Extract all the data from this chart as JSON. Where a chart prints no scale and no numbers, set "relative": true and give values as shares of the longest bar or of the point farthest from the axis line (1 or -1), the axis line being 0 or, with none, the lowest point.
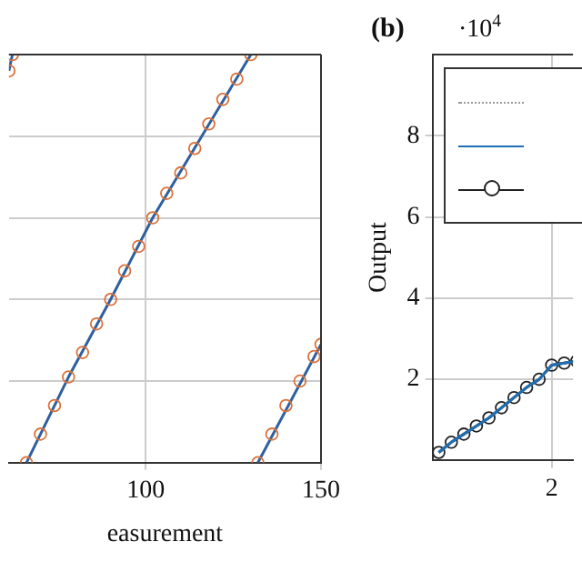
{
  "chart_data": [
    {
      "type": "scatter",
      "xlabel": "easurement",
      "relative": true,
      "xlim": [
        61,
        150
      ],
      "xticks": [
        100,
        150
      ],
      "tick_labels": "x",
      "grid": true,
      "series": [
        {
          "marker": "circle",
          "color": "#d9723a",
          "x": [
            61,
            62,
            66,
            70,
            74,
            78,
            82,
            86,
            90,
            94,
            98,
            102,
            106,
            110,
            114,
            118,
            122,
            126,
            130,
            132,
            136,
            140,
            144,
            148,
            150
          ],
          "values": [
            0.96,
            1,
            0,
            0.07,
            0.14,
            0.21,
            0.27,
            0.34,
            0.4,
            0.47,
            0.53,
            0.6,
            0.66,
            0.71,
            0.77,
            0.83,
            0.89,
            0.94,
            1,
            0,
            0.07,
            0.14,
            0.2,
            0.26,
            0.29
          ]
        },
        {
          "type": "line",
          "color": "#2f5f9e",
          "x": [
            61,
            62
          ],
          "values": [
            0.96,
            1
          ]
        },
        {
          "type": "line",
          "color": "#2f5f9e",
          "x": [
            66,
            78,
            90,
            102,
            116,
            130
          ],
          "values": [
            0,
            0.21,
            0.4,
            0.6,
            0.8,
            1
          ]
        },
        {
          "type": "line",
          "color": "#2f5f9e",
          "x": [
            132,
            150
          ],
          "values": [
            0,
            0.29
          ]
        }
      ]
    },
    {
      "type": "line",
      "title": "(b)",
      "annotations": [
        "·10$^{4}$"
      ],
      "ylabel": "Output",
      "ylim": [
        0,
        10
      ],
      "yticks": [
        2,
        4,
        6,
        8
      ],
      "grid": true,
      "categories": [
        null,
        null,
        null,
        null,
        null,
        null,
        null,
        null,
        null,
        "2",
        null,
        null
      ],
      "series": [
        {
          "color": "#999999",
          "line_style": "dotted",
          "marker": "none",
          "values": [
            null,
            null,
            null,
            null,
            null,
            null,
            null,
            null,
            null,
            null,
            null,
            null
          ]
        },
        {
          "color": "#1f6fb4",
          "line_style": "solid",
          "marker": "none",
          "values": [
            0.2,
            0.45,
            0.65,
            0.85,
            1.05,
            1.3,
            1.55,
            1.8,
            2.0,
            2.35,
            2.4,
            2.45
          ]
        },
        {
          "color": "#222222",
          "line_style": "solid",
          "marker": "circle",
          "values": [
            0.2,
            0.45,
            0.65,
            0.85,
            1.05,
            1.3,
            1.55,
            1.8,
            2.0,
            2.35,
            2.4,
            2.45
          ]
        }
      ]
    }
  ]
}
